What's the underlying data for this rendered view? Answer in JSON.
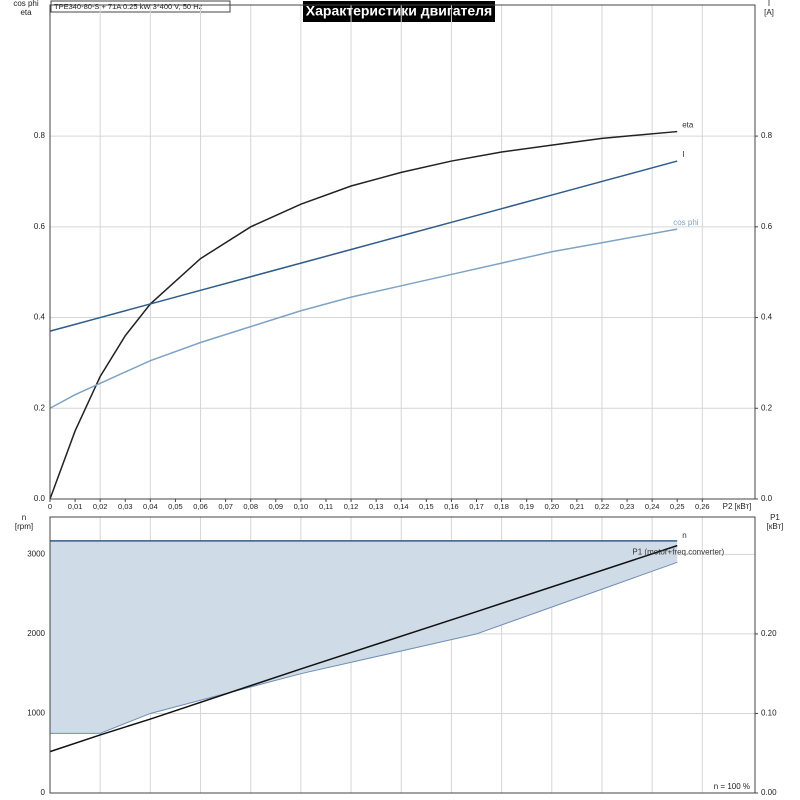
{
  "chart_data": [
    {
      "type": "line",
      "title": "Характеристики двигателя",
      "subtitle": "TPE340-80-S + 71A   0.25 kW   3*400 V, 50 Hz",
      "y_label": [
        "cos phi",
        "eta"
      ],
      "y2_label": [
        "I",
        "[A]"
      ],
      "x_label": "P2 [кВт]",
      "x": [
        0,
        0.01,
        0.02,
        0.03,
        0.04,
        0.06,
        0.08,
        0.1,
        0.12,
        0.14,
        0.16,
        0.18,
        0.2,
        0.22,
        0.25
      ],
      "series": [
        {
          "name": "eta",
          "color": "#222222",
          "values": [
            0,
            0.15,
            0.27,
            0.36,
            0.43,
            0.53,
            0.6,
            0.65,
            0.69,
            0.72,
            0.745,
            0.765,
            0.78,
            0.795,
            0.81
          ]
        },
        {
          "name": "I",
          "color": "#2f5b8a",
          "axis": "y2",
          "values": [
            0.37,
            0.385,
            0.4,
            0.415,
            0.43,
            0.46,
            0.49,
            0.52,
            0.55,
            0.58,
            0.61,
            0.64,
            0.67,
            0.7,
            0.745
          ]
        },
        {
          "name": "cos phi",
          "color": "#7fa3c4",
          "values": [
            0.2,
            0.23,
            0.255,
            0.28,
            0.305,
            0.345,
            0.38,
            0.415,
            0.445,
            0.47,
            0.495,
            0.52,
            0.545,
            0.565,
            0.595
          ]
        }
      ],
      "xlim": [
        0,
        0.281
      ],
      "xticks": [
        0,
        {
          "value": 0.01,
          "label": "0,01"
        },
        {
          "value": 0.02,
          "label": "0,02"
        },
        {
          "value": 0.03,
          "label": "0,03"
        },
        {
          "value": 0.04,
          "label": "0,04"
        },
        {
          "value": 0.05,
          "label": "0,05"
        },
        {
          "value": 0.06,
          "label": "0,06"
        },
        {
          "value": 0.07,
          "label": "0,07"
        },
        {
          "value": 0.08,
          "label": "0,08"
        },
        {
          "value": 0.09,
          "label": "0,09"
        },
        {
          "value": 0.1,
          "label": "0,10"
        },
        {
          "value": 0.11,
          "label": "0,11"
        },
        {
          "value": 0.12,
          "label": "0,12"
        },
        {
          "value": 0.13,
          "label": "0,13"
        },
        {
          "value": 0.14,
          "label": "0,14"
        },
        {
          "value": 0.15,
          "label": "0,15"
        },
        {
          "value": 0.16,
          "label": "0,16"
        },
        {
          "value": 0.17,
          "label": "0,17"
        },
        {
          "value": 0.18,
          "label": "0,18"
        },
        {
          "value": 0.19,
          "label": "0,19"
        },
        {
          "value": 0.2,
          "label": "0,20"
        },
        {
          "value": 0.21,
          "label": "0,21"
        },
        {
          "value": 0.22,
          "label": "0,22"
        },
        {
          "value": 0.23,
          "label": "0,23"
        },
        {
          "value": 0.24,
          "label": "0,24"
        },
        {
          "value": 0.25,
          "label": "0,25"
        },
        {
          "value": 0.26,
          "label": "0,26"
        }
      ],
      "ylim": [
        0,
        1.089
      ],
      "yticks": [
        {
          "value": 0,
          "label": "0.0"
        },
        0.2,
        0.4,
        0.6,
        0.8
      ],
      "y2lim": [
        0,
        1.089
      ],
      "y2ticks": [
        {
          "value": 0,
          "label": "0.0"
        },
        0.2,
        0.4,
        0.6,
        0.8
      ],
      "grid": true
    },
    {
      "type": "line",
      "y_label": [
        "n",
        "[rpm]"
      ],
      "y2_label": [
        "P1",
        "[кВт]"
      ],
      "annotation": "n = 100 %",
      "x": [
        0,
        0.02,
        0.04,
        0.1,
        0.17,
        0.25
      ],
      "series": [
        {
          "name": "n",
          "color": "#2f5b8a",
          "values": [
            3170,
            3170,
            3170,
            3170,
            3170,
            3170
          ]
        },
        {
          "name": "P1 (motor+freq.converter)",
          "color": "#111111",
          "axis": "y2",
          "values": [
            0.052,
            0.073,
            0.093,
            0.156,
            0.228,
            0.311
          ]
        }
      ],
      "band": {
        "color": "#cfdbe7",
        "values": [
          750,
          750,
          1000,
          1500,
          2000,
          2900
        ]
      },
      "xlim": [
        0,
        0.281
      ],
      "ylim": [
        0,
        3470
      ],
      "yticks": [
        0,
        1000,
        2000,
        3000
      ],
      "y2lim": [
        0,
        0.347
      ],
      "y2ticks": [
        {
          "value": 0,
          "label": "0.00"
        },
        {
          "value": 0.1,
          "label": "0.10"
        },
        {
          "value": 0.2,
          "label": "0.20"
        }
      ],
      "grid": true
    }
  ]
}
